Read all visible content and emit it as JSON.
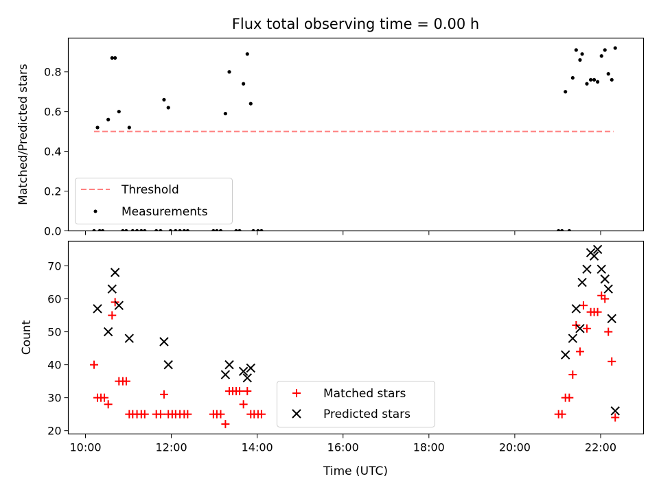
{
  "chart_data": [
    {
      "type": "scatter",
      "title": "Flux total observing time = 0.00 h",
      "xlabel": "",
      "ylabel": "Matched/Predicted stars",
      "xlim": [
        9.6,
        23.0
      ],
      "ylim": [
        0.0,
        0.97
      ],
      "yticks": [
        0.0,
        0.2,
        0.4,
        0.6,
        0.8
      ],
      "ytick_labels": [
        "0.0",
        "0.2",
        "0.4",
        "0.6",
        "0.8"
      ],
      "xticks": [
        10,
        12,
        14,
        16,
        18,
        20,
        22
      ],
      "legend_position": "lower-left",
      "series": [
        {
          "name": "Threshold",
          "style": "dashed-line",
          "color": "#ff8080",
          "x": [
            10.2,
            22.3
          ],
          "y": [
            0.5,
            0.5
          ]
        },
        {
          "name": "Measurements",
          "style": "dot",
          "color": "#000000",
          "x": [
            10.28,
            10.53,
            10.62,
            10.69,
            10.78,
            11.02,
            11.83,
            11.93,
            13.26,
            13.35,
            13.68,
            13.77,
            13.85,
            21.18,
            21.35,
            21.43,
            21.52,
            21.57,
            21.68,
            21.77,
            21.85,
            21.93,
            22.02,
            22.1,
            22.18,
            22.26,
            22.34,
            10.2,
            10.33,
            10.4,
            10.87,
            10.95,
            11.1,
            11.2,
            11.3,
            11.38,
            11.65,
            11.75,
            11.98,
            12.1,
            12.2,
            12.3,
            12.38,
            12.98,
            13.06,
            13.15,
            13.51,
            13.59,
            13.91,
            14.02,
            14.1,
            21.02,
            21.1,
            21.27
          ],
          "y": [
            0.52,
            0.56,
            0.87,
            0.87,
            0.6,
            0.52,
            0.66,
            0.62,
            0.59,
            0.8,
            0.74,
            0.89,
            0.64,
            0.7,
            0.77,
            0.91,
            0.86,
            0.89,
            0.74,
            0.76,
            0.76,
            0.75,
            0.88,
            0.91,
            0.79,
            0.76,
            0.92,
            0,
            0,
            0,
            0,
            0,
            0,
            0,
            0,
            0,
            0,
            0,
            0,
            0,
            0,
            0,
            0,
            0,
            0,
            0,
            0,
            0,
            0,
            0,
            0,
            0,
            0,
            0
          ]
        }
      ]
    },
    {
      "type": "scatter",
      "title": "",
      "xlabel": "Time (UTC)",
      "ylabel": "Count",
      "xlim": [
        9.6,
        23.0
      ],
      "ylim": [
        19.0,
        77.5
      ],
      "yticks": [
        20,
        30,
        40,
        50,
        60,
        70
      ],
      "ytick_labels": [
        "20",
        "30",
        "40",
        "50",
        "60",
        "70"
      ],
      "xticks": [
        10,
        12,
        14,
        16,
        18,
        20,
        22
      ],
      "xtick_labels": [
        "10:00",
        "12:00",
        "14:00",
        "16:00",
        "18:00",
        "20:00",
        "22:00"
      ],
      "legend_position": "lower-center",
      "series": [
        {
          "name": "Matched stars",
          "style": "plus",
          "color": "#ff0000",
          "x": [
            10.2,
            10.28,
            10.36,
            10.44,
            10.53,
            10.62,
            10.69,
            10.78,
            10.87,
            10.95,
            11.02,
            11.1,
            11.2,
            11.3,
            11.38,
            11.65,
            11.75,
            11.83,
            11.93,
            12.02,
            12.1,
            12.2,
            12.3,
            12.38,
            12.98,
            13.06,
            13.15,
            13.26,
            13.35,
            13.43,
            13.51,
            13.59,
            13.68,
            13.77,
            13.85,
            13.93,
            14.02,
            14.1,
            21.02,
            21.1,
            21.18,
            21.27,
            21.35,
            21.43,
            21.52,
            21.6,
            21.68,
            21.77,
            21.85,
            21.93,
            22.02,
            22.1,
            22.18,
            22.26,
            22.34
          ],
          "y": [
            40,
            30,
            30,
            30,
            28,
            55,
            59,
            35,
            35,
            35,
            25,
            25,
            25,
            25,
            25,
            25,
            25,
            31,
            25,
            25,
            25,
            25,
            25,
            25,
            25,
            25,
            25,
            22,
            32,
            32,
            32,
            32,
            28,
            32,
            25,
            25,
            25,
            25,
            25,
            25,
            30,
            30,
            37,
            52,
            44,
            58,
            51,
            56,
            56,
            56,
            61,
            60,
            50,
            41,
            24
          ]
        },
        {
          "name": "Predicted stars",
          "style": "x",
          "color": "#000000",
          "x": [
            10.28,
            10.53,
            10.62,
            10.69,
            10.78,
            11.02,
            11.83,
            11.93,
            13.26,
            13.35,
            13.68,
            13.77,
            13.85,
            21.18,
            21.35,
            21.43,
            21.52,
            21.57,
            21.68,
            21.77,
            21.85,
            21.93,
            22.02,
            22.1,
            22.18,
            22.26,
            22.34
          ],
          "y": [
            57,
            50,
            63,
            68,
            58,
            48,
            47,
            40,
            37,
            40,
            38,
            36,
            39,
            43,
            48,
            57,
            51,
            65,
            69,
            74,
            73,
            75,
            69,
            66,
            63,
            54,
            26
          ]
        }
      ]
    }
  ]
}
